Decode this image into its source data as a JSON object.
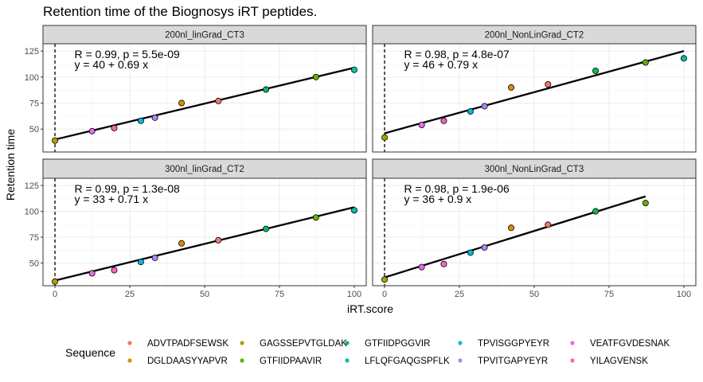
{
  "chart_data": {
    "type": "scatter",
    "title": "Retention time of the Biognosys iRT peptides.",
    "xlabel": "iRT.score",
    "ylabel": "Retention time",
    "xlim": [
      -4,
      104
    ],
    "ylim": [
      28,
      132
    ],
    "xticks": [
      "0",
      "25",
      "50",
      "75",
      "100"
    ],
    "yticks": [
      "50",
      "75",
      "100",
      "125"
    ],
    "grid": true,
    "reference_line_x": 0,
    "legend": {
      "title": "Sequence",
      "placement": "bottom",
      "entries": [
        {
          "name": "ADVTPADFSEWSK",
          "color": "#F8766D"
        },
        {
          "name": "DGLDAASYYAPVR",
          "color": "#DB8E00"
        },
        {
          "name": "GAGSSEPVTGLDAK",
          "color": "#AEA200"
        },
        {
          "name": "GTFIIDPAAVIR",
          "color": "#64B200"
        },
        {
          "name": "GTFIIDPGGVIR",
          "color": "#00BD5C"
        },
        {
          "name": "LFLQFGAQGSPFLK",
          "color": "#00C1A7"
        },
        {
          "name": "TPVISGGPYEYR",
          "color": "#00BADE"
        },
        {
          "name": "TPVITGAPYEYR",
          "color": "#B385FF"
        },
        {
          "name": "VEATFGVDESNAK",
          "color": "#EF67EB"
        },
        {
          "name": "YILAGVENSK",
          "color": "#FF63B6"
        }
      ]
    },
    "panels": [
      {
        "strip": "200nl_linGrad_CT3",
        "stat_label": "R = 0.99, p = 5.5e-09",
        "eq_label": "y = 40 + 0.69 x",
        "fit": {
          "intercept": 40,
          "slope": 0.69,
          "x_end": 100
        },
        "points": [
          {
            "seq": "GAGSSEPVTGLDAK",
            "x": 0,
            "y": 39
          },
          {
            "seq": "VEATFGVDESNAK",
            "x": 12.4,
            "y": 48
          },
          {
            "seq": "YILAGVENSK",
            "x": 19.8,
            "y": 51
          },
          {
            "seq": "TPVISGGPYEYR",
            "x": 28.7,
            "y": 58
          },
          {
            "seq": "TPVITGAPYEYR",
            "x": 33.4,
            "y": 61
          },
          {
            "seq": "DGLDAASYYAPVR",
            "x": 42.3,
            "y": 75
          },
          {
            "seq": "ADVTPADFSEWSK",
            "x": 54.6,
            "y": 77
          },
          {
            "seq": "GTFIIDPGGVIR",
            "x": 70.5,
            "y": 88
          },
          {
            "seq": "GTFIIDPAAVIR",
            "x": 87.2,
            "y": 100
          },
          {
            "seq": "LFLQFGAQGSPFLK",
            "x": 100,
            "y": 107
          }
        ]
      },
      {
        "strip": "200nl_NonLinGrad_CT2",
        "stat_label": "R = 0.98, p = 4.8e-07",
        "eq_label": "y = 46 + 0.79 x",
        "fit": {
          "intercept": 46,
          "slope": 0.79,
          "x_end": 100
        },
        "points": [
          {
            "seq": "GAGSSEPVTGLDAK",
            "x": 0,
            "y": 42
          },
          {
            "seq": "VEATFGVDESNAK",
            "x": 12.4,
            "y": 54
          },
          {
            "seq": "YILAGVENSK",
            "x": 19.8,
            "y": 58
          },
          {
            "seq": "TPVISGGPYEYR",
            "x": 28.7,
            "y": 67
          },
          {
            "seq": "TPVITGAPYEYR",
            "x": 33.4,
            "y": 72
          },
          {
            "seq": "DGLDAASYYAPVR",
            "x": 42.3,
            "y": 90
          },
          {
            "seq": "ADVTPADFSEWSK",
            "x": 54.6,
            "y": 93
          },
          {
            "seq": "GTFIIDPGGVIR",
            "x": 70.5,
            "y": 106
          },
          {
            "seq": "GTFIIDPAAVIR",
            "x": 87.2,
            "y": 114
          },
          {
            "seq": "LFLQFGAQGSPFLK",
            "x": 100,
            "y": 118
          }
        ]
      },
      {
        "strip": "300nl_linGrad_CT2",
        "stat_label": "R = 0.99, p = 1.3e-08",
        "eq_label": "y = 33 + 0.71 x",
        "fit": {
          "intercept": 33,
          "slope": 0.71,
          "x_end": 100
        },
        "points": [
          {
            "seq": "GAGSSEPVTGLDAK",
            "x": 0,
            "y": 32
          },
          {
            "seq": "VEATFGVDESNAK",
            "x": 12.4,
            "y": 40
          },
          {
            "seq": "YILAGVENSK",
            "x": 19.8,
            "y": 43
          },
          {
            "seq": "TPVISGGPYEYR",
            "x": 28.7,
            "y": 51
          },
          {
            "seq": "TPVITGAPYEYR",
            "x": 33.4,
            "y": 55
          },
          {
            "seq": "DGLDAASYYAPVR",
            "x": 42.3,
            "y": 69
          },
          {
            "seq": "ADVTPADFSEWSK",
            "x": 54.6,
            "y": 72
          },
          {
            "seq": "GTFIIDPGGVIR",
            "x": 70.5,
            "y": 83
          },
          {
            "seq": "GTFIIDPAAVIR",
            "x": 87.2,
            "y": 94
          },
          {
            "seq": "LFLQFGAQGSPFLK",
            "x": 100,
            "y": 101
          }
        ]
      },
      {
        "strip": "300nl_NonLinGrad_CT3",
        "stat_label": "R = 0.98, p = 1.9e-06",
        "eq_label": "y = 36 + 0.9 x",
        "fit": {
          "intercept": 36,
          "slope": 0.9,
          "x_end": 87.2
        },
        "points": [
          {
            "seq": "GAGSSEPVTGLDAK",
            "x": 0,
            "y": 34
          },
          {
            "seq": "VEATFGVDESNAK",
            "x": 12.4,
            "y": 46
          },
          {
            "seq": "YILAGVENSK",
            "x": 19.8,
            "y": 49
          },
          {
            "seq": "TPVISGGPYEYR",
            "x": 28.7,
            "y": 60
          },
          {
            "seq": "TPVITGAPYEYR",
            "x": 33.4,
            "y": 65
          },
          {
            "seq": "DGLDAASYYAPVR",
            "x": 42.3,
            "y": 84
          },
          {
            "seq": "ADVTPADFSEWSK",
            "x": 54.6,
            "y": 87
          },
          {
            "seq": "GTFIIDPGGVIR",
            "x": 70.5,
            "y": 100
          },
          {
            "seq": "GTFIIDPAAVIR",
            "x": 87.2,
            "y": 108
          }
        ]
      }
    ]
  }
}
